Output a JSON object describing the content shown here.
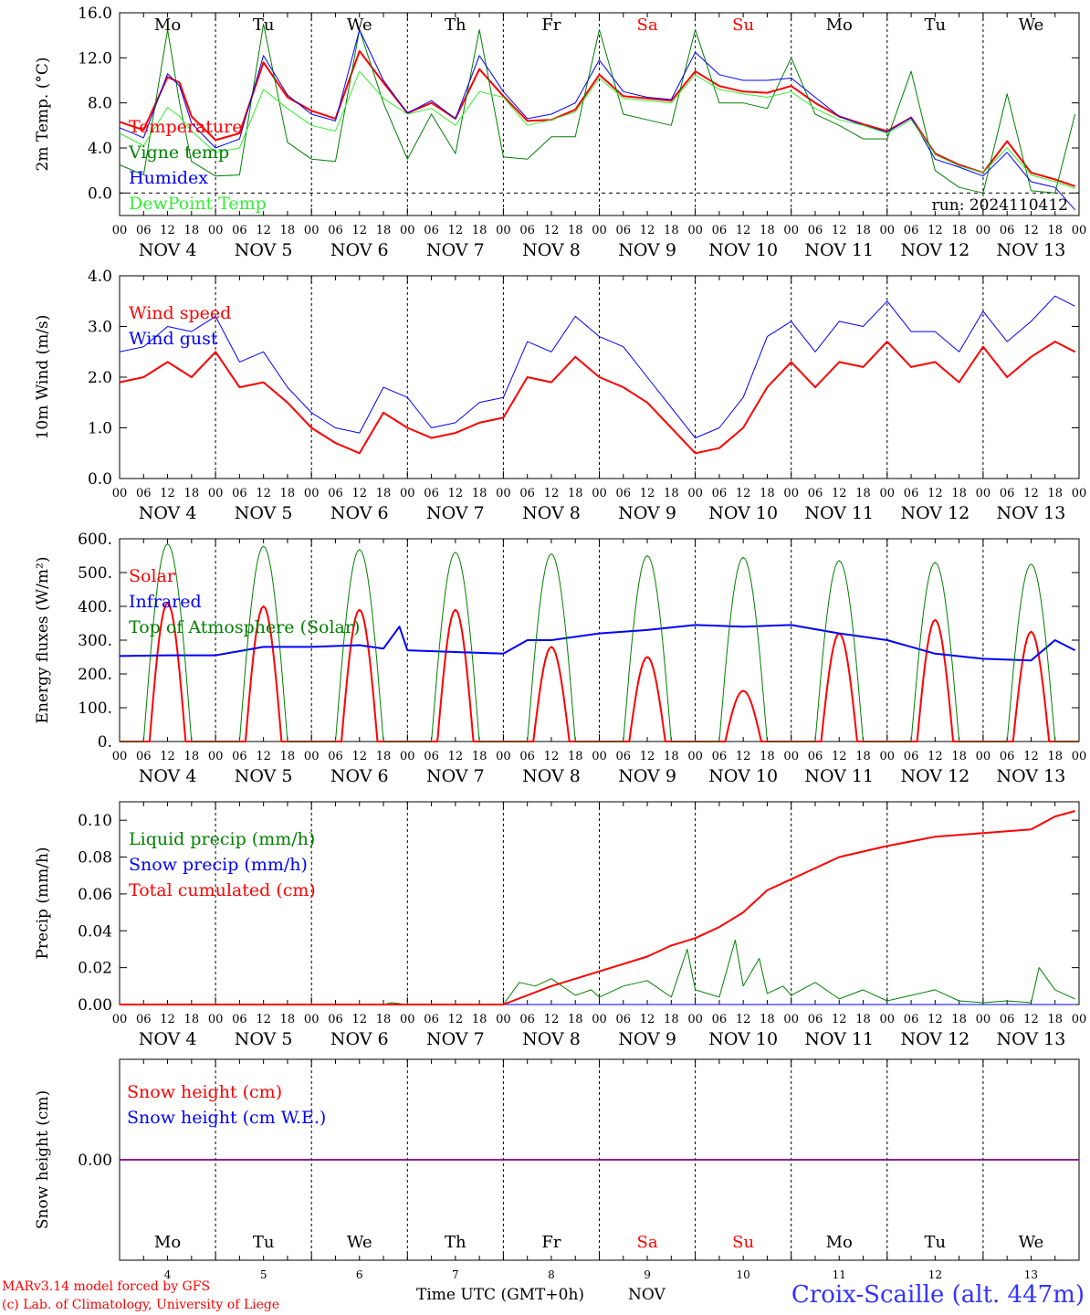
{
  "colors": {
    "red": "#ff0000",
    "green": "#008000",
    "blue": "#0000ff",
    "lightgreen": "#33ee33",
    "purple": "#800080",
    "title_blue": "#3333ff"
  },
  "weekday_labels": [
    "Mo",
    "Tu",
    "We",
    "Th",
    "Fr",
    "Sa",
    "Su",
    "Mo",
    "Tu",
    "We"
  ],
  "weekend_flags": [
    false,
    false,
    false,
    false,
    false,
    true,
    true,
    false,
    false,
    false
  ],
  "date_labels": [
    "NOV  4",
    "NOV  5",
    "NOV  6",
    "NOV  7",
    "NOV  8",
    "NOV  9",
    "NOV 10",
    "NOV 11",
    "NOV 12",
    "NOV 13"
  ],
  "day_numbers": [
    "4",
    "5",
    "6",
    "7",
    "8",
    "9",
    "10",
    "11",
    "12",
    "13"
  ],
  "hour_labels": [
    "00",
    "06",
    "12",
    "18"
  ],
  "hour_label_end": "00",
  "footer": {
    "model": "MARv3.14 model forced by GFS",
    "lab": "(c) Lab. of Climatology, University of Liege",
    "xlabel": "Time UTC (GMT+0h)",
    "month": "NOV",
    "station": "Croix-Scaille (alt. 447m)"
  },
  "chart_data": [
    {
      "type": "line",
      "ylabel": "2m Temp. (°C)",
      "ylim": [
        -2,
        16
      ],
      "yticks": [
        "0.0",
        "4.0",
        "8.0",
        "12.0",
        "16.0"
      ],
      "ytick_values": [
        0,
        4,
        8,
        12,
        16
      ],
      "zero_dashed": true,
      "annotation": "run: 2024110412",
      "x_unit": "hours since 2024-11-04 00 UTC",
      "series": [
        {
          "name": "Temperature",
          "color": "red",
          "x": [
            0,
            6,
            12,
            15,
            18,
            24,
            30,
            36,
            42,
            48,
            54,
            60,
            66,
            72,
            78,
            84,
            90,
            96,
            102,
            108,
            114,
            120,
            126,
            132,
            138,
            144,
            150,
            156,
            162,
            168,
            174,
            180,
            186,
            192,
            198,
            204,
            210,
            216,
            222,
            228,
            234,
            239
          ],
          "values": [
            6.3,
            5.6,
            10.3,
            9.8,
            6.8,
            4.7,
            5.3,
            11.6,
            8.5,
            7.3,
            6.6,
            12.6,
            9.8,
            7.1,
            8.0,
            6.6,
            11.0,
            8.6,
            6.4,
            6.5,
            7.4,
            10.5,
            8.6,
            8.4,
            8.2,
            10.8,
            9.5,
            9.0,
            8.9,
            9.5,
            8.0,
            6.8,
            6.1,
            5.5,
            6.7,
            3.5,
            2.5,
            1.8,
            4.6,
            1.8,
            1.2,
            0.6
          ]
        },
        {
          "name": "Vigne temp",
          "color": "green",
          "x": [
            0,
            6,
            12,
            15,
            18,
            24,
            30,
            36,
            42,
            48,
            54,
            60,
            66,
            72,
            78,
            84,
            90,
            96,
            102,
            108,
            114,
            120,
            126,
            132,
            138,
            144,
            150,
            156,
            162,
            168,
            174,
            180,
            186,
            192,
            198,
            204,
            210,
            216,
            222,
            228,
            234,
            239
          ],
          "values": [
            2.5,
            1.6,
            14.5,
            8.0,
            2.8,
            1.5,
            1.6,
            15.0,
            4.5,
            3.0,
            2.8,
            14.5,
            8.0,
            3.0,
            7.0,
            3.5,
            14.5,
            3.2,
            3.0,
            5.0,
            5.0,
            14.5,
            7.0,
            6.5,
            6.0,
            14.5,
            8.0,
            8.0,
            7.5,
            12.0,
            7.0,
            6.0,
            4.8,
            4.8,
            10.8,
            2.0,
            0.5,
            0.0,
            8.8,
            0.2,
            0.0,
            7.0
          ]
        },
        {
          "name": "Humidex",
          "color": "blue",
          "x": [
            0,
            6,
            12,
            15,
            18,
            24,
            30,
            36,
            42,
            48,
            54,
            60,
            66,
            72,
            78,
            84,
            90,
            96,
            102,
            108,
            114,
            120,
            126,
            132,
            138,
            144,
            150,
            156,
            162,
            168,
            174,
            180,
            186,
            192,
            198,
            204,
            210,
            216,
            222,
            228,
            234,
            239
          ],
          "values": [
            5.8,
            4.9,
            10.6,
            9.5,
            6.2,
            4.0,
            4.8,
            12.2,
            8.7,
            7.0,
            6.4,
            14.5,
            10.0,
            7.1,
            8.2,
            6.6,
            12.2,
            9.0,
            6.6,
            7.0,
            8.0,
            11.8,
            9.0,
            8.5,
            8.3,
            12.5,
            10.5,
            10.0,
            10.0,
            10.2,
            8.5,
            6.8,
            6.0,
            5.4,
            6.7,
            3.0,
            2.3,
            1.5,
            3.6,
            1.0,
            0.5,
            -1.5
          ]
        },
        {
          "name": "DewPoint Temp",
          "color": "lightgreen",
          "x": [
            0,
            6,
            12,
            15,
            18,
            24,
            30,
            36,
            42,
            48,
            54,
            60,
            66,
            72,
            78,
            84,
            90,
            96,
            102,
            108,
            114,
            120,
            126,
            132,
            138,
            144,
            150,
            156,
            162,
            168,
            174,
            180,
            186,
            192,
            198,
            204,
            210,
            216,
            222,
            228,
            234,
            239
          ],
          "values": [
            5.3,
            4.2,
            7.6,
            6.8,
            5.5,
            3.6,
            4.0,
            9.2,
            7.5,
            6.0,
            5.5,
            10.8,
            8.4,
            7.0,
            7.5,
            6.0,
            9.0,
            8.5,
            6.0,
            6.5,
            7.2,
            10.2,
            8.4,
            8.2,
            8.0,
            10.5,
            9.2,
            8.8,
            8.5,
            9.0,
            7.5,
            6.5,
            6.0,
            5.3,
            6.5,
            3.4,
            2.4,
            1.8,
            4.0,
            1.6,
            1.0,
            0.4
          ]
        }
      ],
      "legend": [
        "Temperature",
        "Vigne temp",
        "Humidex",
        "DewPoint Temp"
      ]
    },
    {
      "type": "line",
      "ylabel": "10m Wind (m/s)",
      "ylim": [
        0,
        4
      ],
      "yticks": [
        "0.0",
        "1.0",
        "2.0",
        "3.0",
        "4.0"
      ],
      "ytick_values": [
        0,
        1,
        2,
        3,
        4
      ],
      "x_unit": "hours since 2024-11-04 00 UTC",
      "series": [
        {
          "name": "Wind speed",
          "color": "red",
          "x": [
            0,
            6,
            12,
            18,
            24,
            30,
            36,
            42,
            48,
            54,
            60,
            66,
            72,
            78,
            84,
            90,
            96,
            102,
            108,
            114,
            120,
            126,
            132,
            138,
            144,
            150,
            156,
            162,
            168,
            174,
            180,
            186,
            192,
            198,
            204,
            210,
            216,
            222,
            228,
            234,
            239
          ],
          "values": [
            1.9,
            2.0,
            2.3,
            2.0,
            2.5,
            1.8,
            1.9,
            1.5,
            1.0,
            0.7,
            0.5,
            1.3,
            1.0,
            0.8,
            0.9,
            1.1,
            1.2,
            2.0,
            1.9,
            2.4,
            2.0,
            1.8,
            1.5,
            1.0,
            0.5,
            0.6,
            1.0,
            1.8,
            2.3,
            1.8,
            2.3,
            2.2,
            2.7,
            2.2,
            2.3,
            1.9,
            2.6,
            2.0,
            2.4,
            2.7,
            2.5
          ]
        },
        {
          "name": "Wind gust",
          "color": "blue",
          "x": [
            0,
            6,
            12,
            18,
            24,
            30,
            36,
            42,
            48,
            54,
            60,
            66,
            72,
            78,
            84,
            90,
            96,
            102,
            108,
            114,
            120,
            126,
            132,
            138,
            144,
            150,
            156,
            162,
            168,
            174,
            180,
            186,
            192,
            198,
            204,
            210,
            216,
            222,
            228,
            234,
            239
          ],
          "values": [
            2.5,
            2.6,
            3.0,
            2.9,
            3.2,
            2.3,
            2.5,
            1.8,
            1.3,
            1.0,
            0.9,
            1.8,
            1.6,
            1.0,
            1.1,
            1.5,
            1.6,
            2.7,
            2.5,
            3.2,
            2.8,
            2.6,
            2.0,
            1.4,
            0.8,
            1.0,
            1.6,
            2.8,
            3.1,
            2.5,
            3.1,
            3.0,
            3.5,
            2.9,
            2.9,
            2.5,
            3.3,
            2.7,
            3.1,
            3.6,
            3.4
          ]
        }
      ],
      "legend": [
        "Wind speed",
        "Wind gust"
      ]
    },
    {
      "type": "line",
      "ylabel": "Energy fluxes (W/m²)",
      "ylim": [
        0,
        600
      ],
      "yticks": [
        "0.",
        "100.",
        "200.",
        "300.",
        "400.",
        "500.",
        "600."
      ],
      "ytick_values": [
        0,
        100,
        200,
        300,
        400,
        500,
        600
      ],
      "x_unit": "hours since 2024-11-04 00 UTC",
      "series": [
        {
          "name": "Solar",
          "color": "red",
          "day_peaks": [
            410,
            400,
            390,
            390,
            280,
            250,
            150,
            320,
            360,
            325
          ]
        },
        {
          "name": "Infrared",
          "color": "blue",
          "x": [
            0,
            12,
            24,
            36,
            48,
            60,
            66,
            70,
            72,
            84,
            96,
            102,
            108,
            120,
            132,
            144,
            156,
            168,
            180,
            186,
            192,
            204,
            216,
            228,
            234,
            239
          ],
          "values": [
            253,
            255,
            255,
            280,
            280,
            285,
            275,
            340,
            270,
            265,
            260,
            300,
            300,
            320,
            330,
            345,
            340,
            345,
            320,
            310,
            300,
            260,
            245,
            240,
            300,
            270
          ]
        },
        {
          "name": "Top of Atmosphere (Solar)",
          "color": "green",
          "day_peaks": [
            585,
            578,
            568,
            560,
            555,
            550,
            545,
            535,
            530,
            525
          ]
        }
      ],
      "legend": [
        "Solar",
        "Infrared",
        "Top of Atmosphere (Solar)"
      ]
    },
    {
      "type": "line",
      "ylabel": "Precip (mm/h)",
      "ylim": [
        0,
        0.11
      ],
      "yticks": [
        "0.00",
        "0.02",
        "0.04",
        "0.06",
        "0.08",
        "0.10"
      ],
      "ytick_values": [
        0,
        0.02,
        0.04,
        0.06,
        0.08,
        0.1
      ],
      "x_unit": "hours since 2024-11-04 00 UTC",
      "series": [
        {
          "name": "Liquid precip (mm/h)",
          "color": "green",
          "x": [
            0,
            66,
            68,
            72,
            96,
            100,
            104,
            108,
            114,
            118,
            120,
            126,
            132,
            138,
            142,
            144,
            150,
            154,
            156,
            160,
            162,
            166,
            168,
            174,
            180,
            186,
            192,
            204,
            210,
            216,
            222,
            228,
            230,
            234,
            239
          ],
          "values": [
            0,
            0,
            0.001,
            0,
            0,
            0.012,
            0.01,
            0.014,
            0.005,
            0.008,
            0.004,
            0.01,
            0.013,
            0.004,
            0.03,
            0.008,
            0.004,
            0.035,
            0.01,
            0.025,
            0.006,
            0.01,
            0.005,
            0.012,
            0.003,
            0.008,
            0.002,
            0.008,
            0.002,
            0.001,
            0.002,
            0.001,
            0.02,
            0.008,
            0.003
          ]
        },
        {
          "name": "Snow precip (mm/h)",
          "color": "blue",
          "x": [
            0,
            239
          ],
          "values": [
            0,
            0
          ]
        },
        {
          "name": "Total cumulated (cm)",
          "color": "red",
          "x": [
            0,
            72,
            96,
            108,
            120,
            132,
            138,
            144,
            150,
            156,
            162,
            168,
            174,
            180,
            192,
            204,
            216,
            228,
            234,
            239
          ],
          "values": [
            0,
            0,
            0,
            0.01,
            0.018,
            0.026,
            0.032,
            0.036,
            0.042,
            0.05,
            0.062,
            0.068,
            0.074,
            0.08,
            0.086,
            0.091,
            0.093,
            0.095,
            0.102,
            0.105
          ]
        }
      ],
      "legend": [
        "Liquid precip (mm/h)",
        "Snow precip (mm/h)",
        "Total cumulated (cm)"
      ]
    },
    {
      "type": "line",
      "ylabel": "Snow height (cm)",
      "ylim": [
        -1,
        1
      ],
      "yticks": [
        "0.00"
      ],
      "ytick_values": [
        0
      ],
      "x_unit": "hours since 2024-11-04 00 UTC",
      "series": [
        {
          "name": "Snow height (cm)",
          "color": "red",
          "x": [
            0,
            240
          ],
          "values": [
            0,
            0
          ]
        },
        {
          "name": "Snow height (cm W.E.)",
          "color": "blue",
          "x": [
            0,
            240
          ],
          "values": [
            0,
            0
          ]
        }
      ],
      "legend": [
        "Snow height (cm)",
        "Snow height (cm W.E.)"
      ]
    }
  ]
}
